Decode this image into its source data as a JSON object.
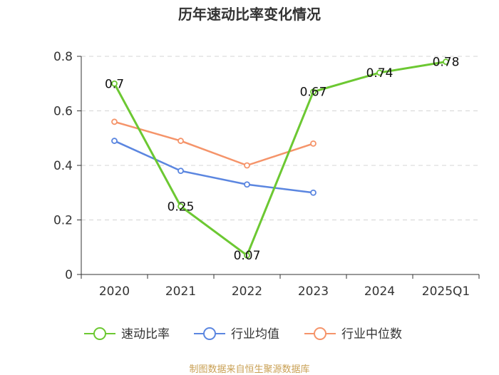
{
  "chart_data": {
    "type": "line",
    "title": "历年速动比率变化情况",
    "categories": [
      "2020",
      "2021",
      "2022",
      "2023",
      "2024",
      "2025Q1"
    ],
    "ylim": [
      0,
      0.8
    ],
    "yticks": [
      "0",
      "0.2",
      "0.4",
      "0.6",
      "0.8"
    ],
    "grid": true,
    "legend_position": "bottom",
    "series": [
      {
        "name": "速动比率",
        "color": "#6cc832",
        "values": [
          0.7,
          0.25,
          0.07,
          0.67,
          0.74,
          0.78
        ],
        "labels": [
          "0.7",
          "0.25",
          "0.07",
          "0.67",
          "0.74",
          "0.78"
        ]
      },
      {
        "name": "行业均值",
        "color": "#5b86e0",
        "values": [
          0.49,
          0.38,
          0.33,
          0.3,
          null,
          null
        ]
      },
      {
        "name": "行业中位数",
        "color": "#f5946a",
        "values": [
          0.56,
          0.49,
          0.4,
          0.48,
          null,
          null
        ]
      }
    ]
  },
  "source": "制图数据来自恒生聚源数据库"
}
